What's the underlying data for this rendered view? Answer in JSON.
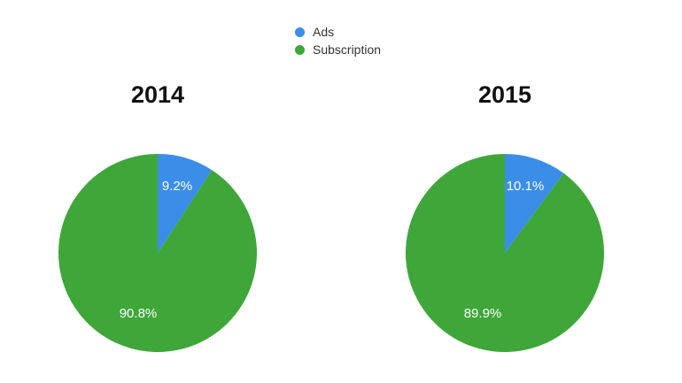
{
  "colors": {
    "ads": "#3b8ee8",
    "subscription": "#3fa63a",
    "label_text": "#ffffff"
  },
  "legend": [
    {
      "label": "Ads",
      "color": "#3b8ee8"
    },
    {
      "label": "Subscription",
      "color": "#3fa63a"
    }
  ],
  "chart_data": [
    {
      "type": "pie",
      "title": "2014",
      "legend_position": "top-center",
      "slices": [
        {
          "label": "Ads",
          "value": 9.2,
          "display": "9.2%"
        },
        {
          "label": "Subscription",
          "value": 90.8,
          "display": "90.8%"
        }
      ]
    },
    {
      "type": "pie",
      "title": "2015",
      "legend_position": "top-center",
      "slices": [
        {
          "label": "Ads",
          "value": 10.1,
          "display": "10.1%"
        },
        {
          "label": "Subscription",
          "value": 89.9,
          "display": "89.9%"
        }
      ]
    }
  ]
}
